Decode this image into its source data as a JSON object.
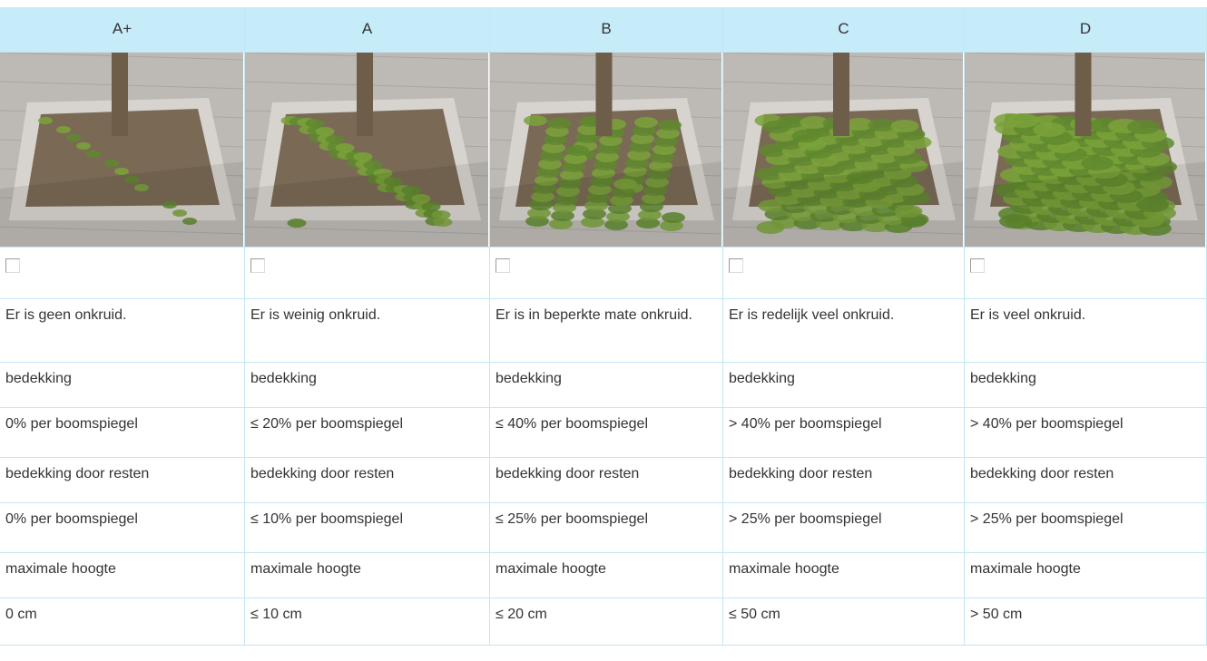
{
  "table": {
    "header": [
      "A+",
      "A",
      "B",
      "C",
      "D"
    ],
    "rows": [
      [
        "Er is geen onkruid.",
        "Er is weinig onkruid.",
        "Er is in beperkte mate onkruid.",
        "Er is redelijk veel onkruid.",
        "Er is veel onkruid."
      ],
      [
        "bedekking",
        "bedekking",
        "bedekking",
        "bedekking",
        "bedekking"
      ],
      [
        "0% per boomspiegel",
        "≤ 20% per boomspiegel",
        "≤ 40% per boomspiegel",
        "> 40% per boomspiegel",
        "> 40% per boomspiegel"
      ],
      [
        "bedekking door resten",
        "bedekking door resten",
        "bedekking door resten",
        "bedekking door resten",
        "bedekking door resten"
      ],
      [
        "0% per boomspiegel",
        "≤ 10% per boomspiegel",
        "≤ 25% per boomspiegel",
        "> 25% per boomspiegel",
        "> 25% per boomspiegel"
      ],
      [
        "maximale hoogte",
        "maximale hoogte",
        "maximale hoogte",
        "maximale hoogte",
        "maximale hoogte"
      ],
      [
        "0 cm",
        "≤ 10 cm",
        "≤ 20 cm",
        "≤ 50 cm",
        "> 50 cm"
      ]
    ]
  }
}
